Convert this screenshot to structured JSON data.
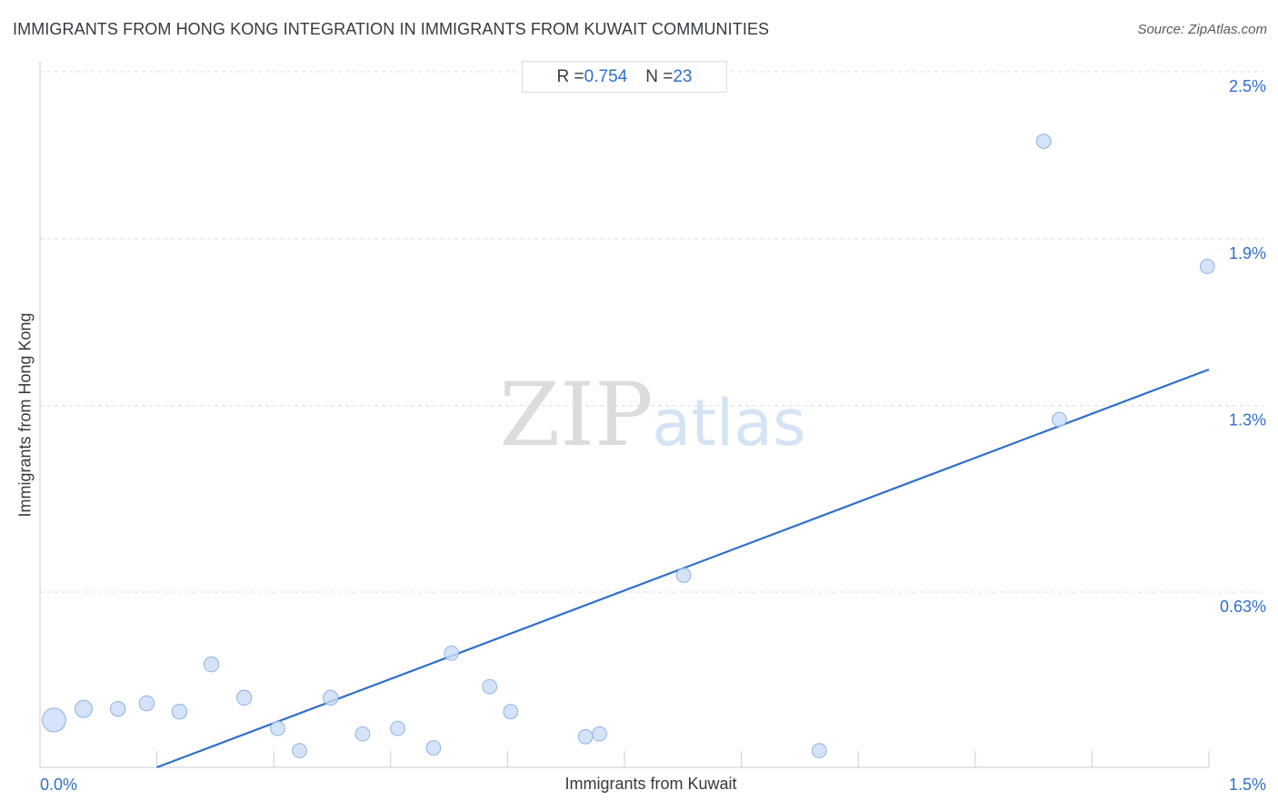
{
  "title": "IMMIGRANTS FROM HONG KONG INTEGRATION IN IMMIGRANTS FROM KUWAIT COMMUNITIES",
  "source": "Source: ZipAtlas.com",
  "stats": {
    "r_label": "R = ",
    "r_value": "0.754",
    "n_label": "N = ",
    "n_value": "23"
  },
  "watermark": {
    "zip": "ZIP",
    "atlas": "atlas"
  },
  "colors": {
    "accent": "#2f6fc9",
    "point_fill": "#c9dcf5",
    "point_stroke": "#8fb2e3",
    "grid": "#d9dde2"
  },
  "chart_data": {
    "type": "scatter",
    "title": "IMMIGRANTS FROM HONG KONG INTEGRATION IN IMMIGRANTS FROM KUWAIT COMMUNITIES",
    "xlabel": "Immigrants from Kuwait",
    "ylabel": "Immigrants from Hong Kong",
    "xlim": [
      0,
      1.5
    ],
    "ylim": [
      0,
      2.5
    ],
    "x_tick_labels": [
      {
        "value": 0,
        "label": "0.0%"
      },
      {
        "value": 1.5,
        "label": "1.5%"
      }
    ],
    "y_tick_labels": [
      {
        "value": 0.63,
        "label": "0.63%"
      },
      {
        "value": 1.3,
        "label": "1.3%"
      },
      {
        "value": 1.9,
        "label": "1.9%"
      },
      {
        "value": 2.5,
        "label": "2.5%"
      }
    ],
    "grid": {
      "horizontal": true,
      "vertical": false
    },
    "points": [
      {
        "x": 0.018,
        "y": 0.17,
        "weight": 3
      },
      {
        "x": 0.056,
        "y": 0.21,
        "weight": 1.6
      },
      {
        "x": 0.1,
        "y": 0.21,
        "weight": 1.2
      },
      {
        "x": 0.137,
        "y": 0.23,
        "weight": 1.2
      },
      {
        "x": 0.179,
        "y": 0.2,
        "weight": 1.2
      },
      {
        "x": 0.22,
        "y": 0.37,
        "weight": 1.2
      },
      {
        "x": 0.262,
        "y": 0.25,
        "weight": 1.2
      },
      {
        "x": 0.305,
        "y": 0.14,
        "weight": 1.1
      },
      {
        "x": 0.333,
        "y": 0.06,
        "weight": 1.1
      },
      {
        "x": 0.373,
        "y": 0.25,
        "weight": 1.2
      },
      {
        "x": 0.414,
        "y": 0.12,
        "weight": 1.1
      },
      {
        "x": 0.459,
        "y": 0.14,
        "weight": 1.1
      },
      {
        "x": 0.505,
        "y": 0.07,
        "weight": 1.1
      },
      {
        "x": 0.528,
        "y": 0.41,
        "weight": 1.1
      },
      {
        "x": 0.577,
        "y": 0.29,
        "weight": 1.1
      },
      {
        "x": 0.604,
        "y": 0.2,
        "weight": 1.1
      },
      {
        "x": 0.7,
        "y": 0.11,
        "weight": 1.1
      },
      {
        "x": 0.718,
        "y": 0.12,
        "weight": 1.1
      },
      {
        "x": 0.826,
        "y": 0.69,
        "weight": 1.1
      },
      {
        "x": 1.0,
        "y": 0.06,
        "weight": 1.1
      },
      {
        "x": 1.288,
        "y": 2.25,
        "weight": 1.1
      },
      {
        "x": 1.308,
        "y": 1.25,
        "weight": 1.1
      },
      {
        "x": 1.498,
        "y": 1.8,
        "weight": 1.1
      }
    ],
    "trendline": {
      "x": [
        0.15,
        1.5
      ],
      "y": [
        0.0,
        1.43
      ]
    }
  }
}
